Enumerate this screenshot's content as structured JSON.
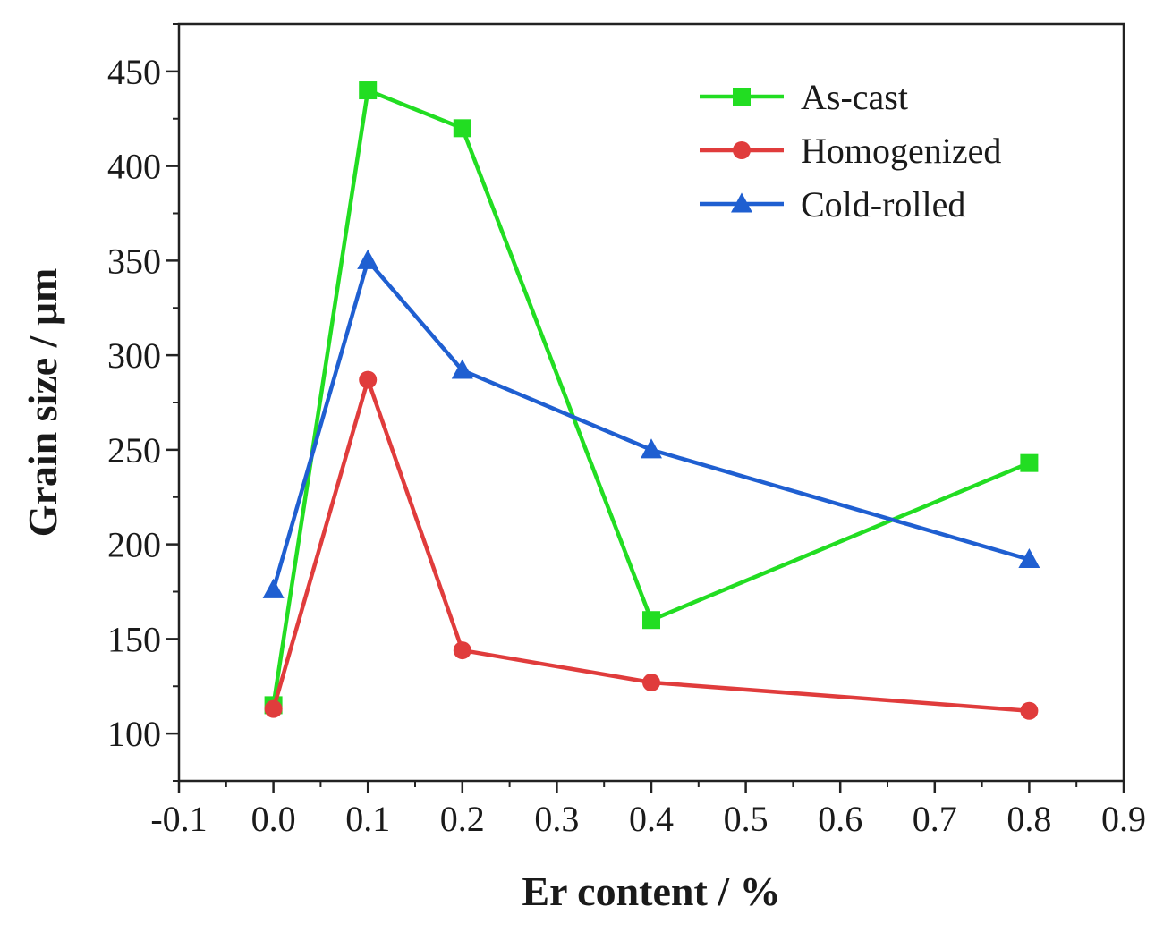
{
  "chart_data": {
    "type": "line",
    "title": "",
    "xlabel": "Er content / %",
    "ylabel": "Grain size / μm",
    "xlim": [
      -0.1,
      0.9
    ],
    "ylim": [
      75,
      475
    ],
    "x_ticks": [
      -0.1,
      0.0,
      0.1,
      0.2,
      0.3,
      0.4,
      0.5,
      0.6,
      0.7,
      0.8,
      0.9
    ],
    "x_tick_labels": [
      "-0.1",
      "0.0",
      "0.1",
      "0.2",
      "0.3",
      "0.4",
      "0.5",
      "0.6",
      "0.7",
      "0.8",
      "0.9"
    ],
    "y_ticks": [
      100,
      150,
      200,
      250,
      300,
      350,
      400,
      450
    ],
    "y_tick_labels": [
      "100",
      "150",
      "200",
      "250",
      "300",
      "350",
      "400",
      "450"
    ],
    "grid": false,
    "legend_position": "top-right",
    "x": [
      0.0,
      0.1,
      0.2,
      0.4,
      0.8
    ],
    "series": [
      {
        "name": "As-cast",
        "color": "#22dd22",
        "marker": "square",
        "values": [
          115,
          440,
          420,
          160,
          243
        ]
      },
      {
        "name": "Homogenized",
        "color": "#e03c3c",
        "marker": "circle",
        "values": [
          113,
          287,
          144,
          127,
          112
        ]
      },
      {
        "name": "Cold-rolled",
        "color": "#1f5fd1",
        "marker": "triangle",
        "values": [
          176,
          350,
          292,
          250,
          192
        ]
      }
    ]
  }
}
